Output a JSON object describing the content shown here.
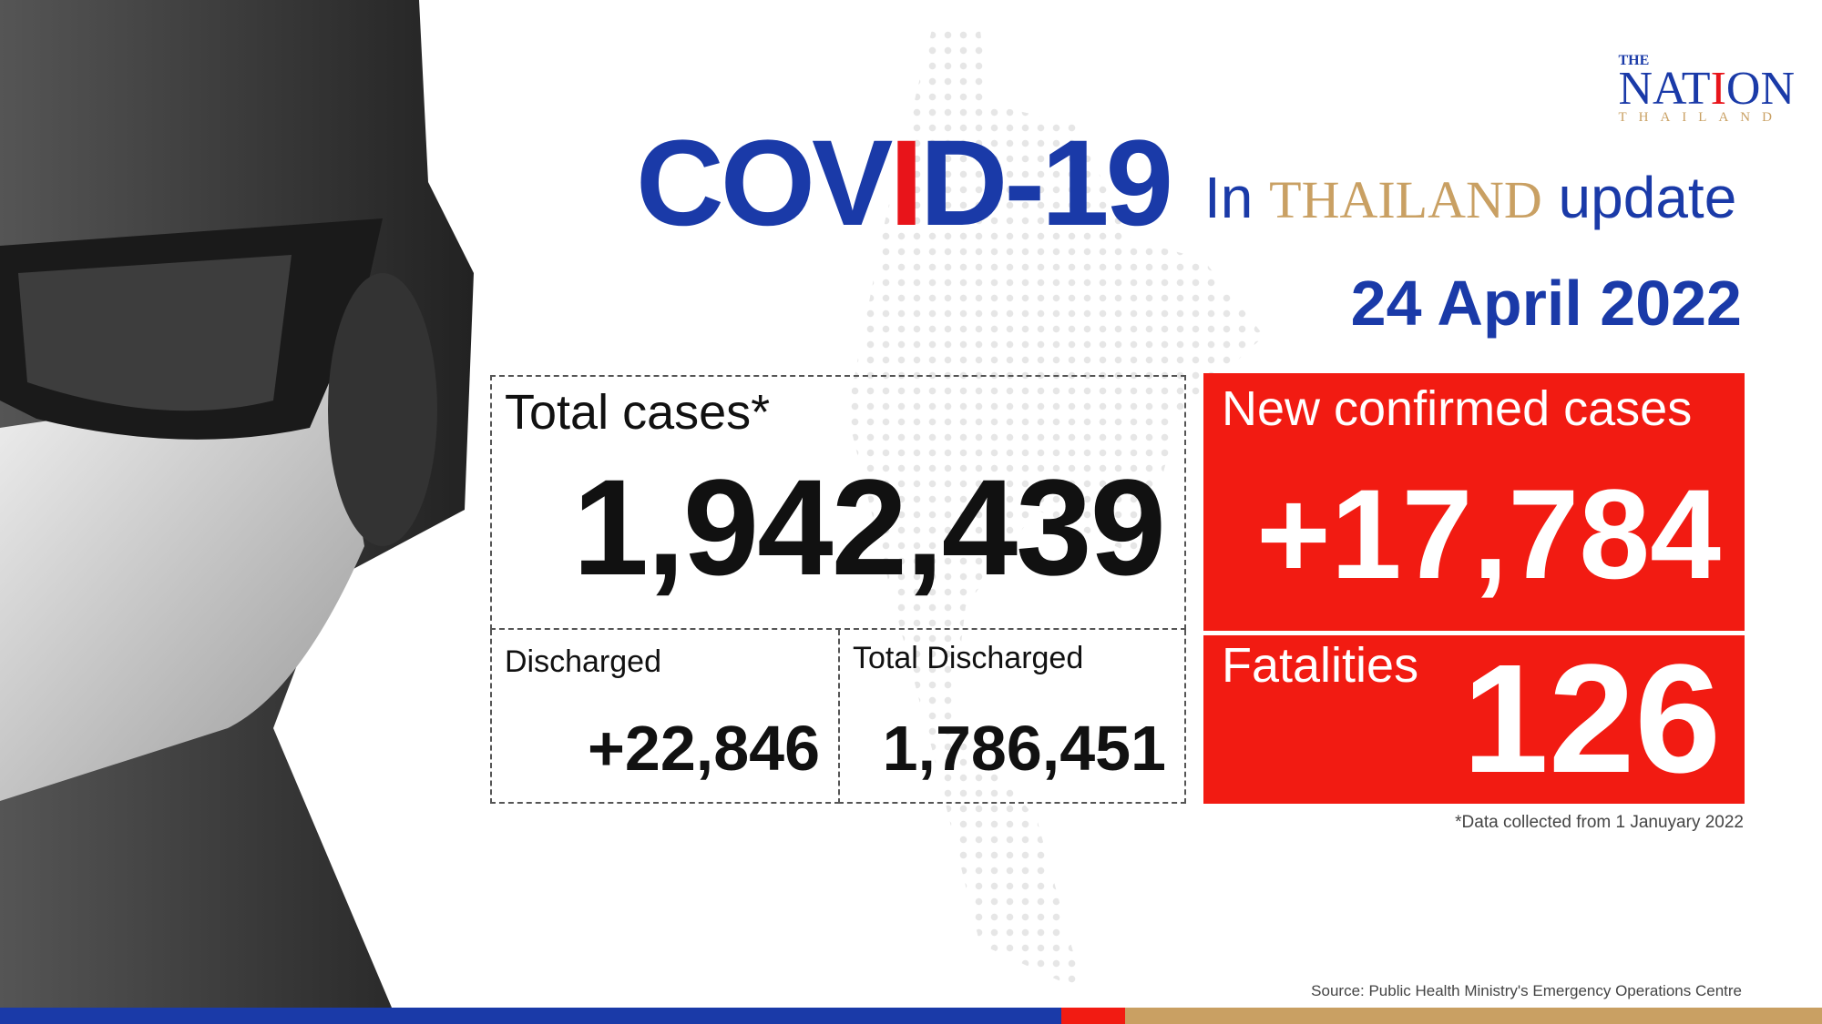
{
  "header": {
    "title_pre": "COV",
    "title_i": "I",
    "title_post": "D-19",
    "sub_in": "In",
    "sub_thailand": "THAILAND",
    "sub_update": "update",
    "date": "24 April 2022"
  },
  "logo": {
    "the": "THE",
    "nation_a": "NAT",
    "nation_i": "I",
    "nation_b": "ON",
    "thailand": "THAILAND"
  },
  "stats": {
    "total_cases": {
      "label": "Total cases*",
      "value": "1,942,439"
    },
    "discharged": {
      "label": "Discharged",
      "value": "+22,846"
    },
    "total_discharged": {
      "label": "Total Discharged",
      "value": "1,786,451"
    },
    "new_confirmed": {
      "label": "New confirmed cases",
      "value": "+17,784"
    },
    "fatalities": {
      "label": "Fatalities",
      "value": "126"
    }
  },
  "footnote": "*Data collected from 1 Januyary 2022",
  "source": "Source: Public Health Ministry's Emergency Operations Centre",
  "colors": {
    "blue": "#1a3aa8",
    "red": "#f21b12",
    "gold": "#c9a063"
  }
}
